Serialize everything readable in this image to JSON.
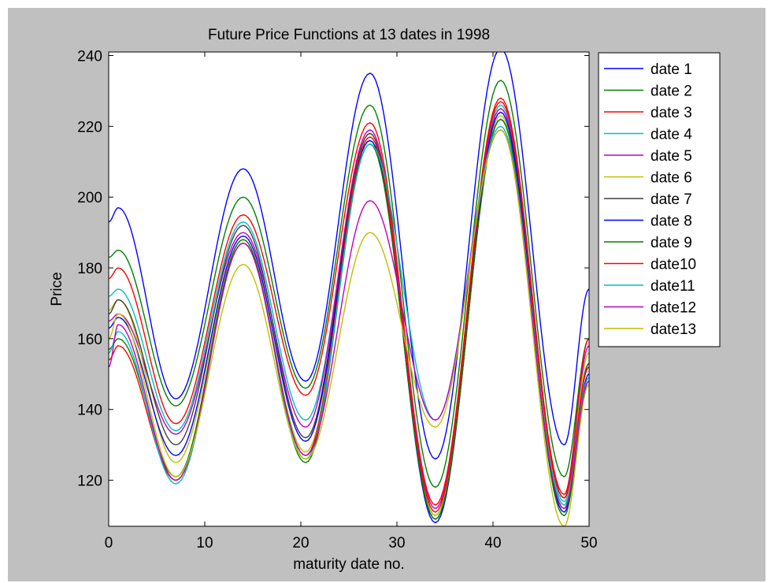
{
  "chart_data": {
    "type": "line",
    "title": "Future Price Functions at 13 dates in 1998",
    "xlabel": "maturity date no.",
    "ylabel": "Price",
    "xlim": [
      0,
      50
    ],
    "ylim": [
      107,
      241
    ],
    "xticks": [
      0,
      10,
      20,
      30,
      40,
      50
    ],
    "xtick_labels": [
      "0",
      "10",
      "20",
      "30",
      "40",
      "50"
    ],
    "yticks": [
      120,
      140,
      160,
      180,
      200,
      220,
      240
    ],
    "ytick_labels": [
      "120",
      "140",
      "160",
      "180",
      "200",
      "220",
      "240"
    ],
    "grid": false,
    "legend_position": "outside-right-top",
    "x": [
      0,
      1,
      7,
      14,
      20.5,
      27.2,
      34,
      40.8,
      47.4,
      50
    ],
    "series": [
      {
        "name": "date 1",
        "color": "#0000ff",
        "values": [
          193,
          197,
          143,
          208,
          148,
          235,
          126,
          242,
          130,
          174
        ]
      },
      {
        "name": "date 2",
        "color": "#008000",
        "values": [
          183,
          185,
          141,
          200,
          146,
          226,
          118,
          233,
          121,
          160
        ]
      },
      {
        "name": "date 3",
        "color": "#ff0000",
        "values": [
          177,
          180,
          136,
          195,
          144,
          221,
          113,
          228,
          116,
          160
        ]
      },
      {
        "name": "date 4",
        "color": "#00bfbf",
        "values": [
          172,
          174,
          134,
          193,
          137,
          216,
          110,
          226,
          114,
          153
        ]
      },
      {
        "name": "date 5",
        "color": "#bf00bf",
        "values": [
          165,
          167,
          133,
          190,
          135,
          219,
          112,
          225,
          115,
          158
        ]
      },
      {
        "name": "date 6",
        "color": "#bfbf00",
        "values": [
          168,
          171,
          125,
          188,
          128,
          218,
          110,
          223,
          113,
          156
        ]
      },
      {
        "name": "date 7",
        "color": "#404040",
        "values": [
          167,
          171,
          130,
          192,
          132,
          218,
          109,
          222,
          112,
          153
        ]
      },
      {
        "name": "date 8",
        "color": "#0000ff",
        "values": [
          163,
          166,
          127,
          189,
          131,
          216,
          108,
          224,
          111,
          150
        ]
      },
      {
        "name": "date 9",
        "color": "#008000",
        "values": [
          157,
          160,
          121,
          188,
          125,
          215,
          109,
          222,
          110,
          148
        ]
      },
      {
        "name": "date10",
        "color": "#ff0000",
        "values": [
          154,
          158,
          120,
          187,
          127,
          217,
          111,
          227,
          115,
          152
        ]
      },
      {
        "name": "date11",
        "color": "#00bfbf",
        "values": [
          156,
          162,
          119,
          187,
          126,
          215,
          137,
          220,
          113,
          149
        ]
      },
      {
        "name": "date12",
        "color": "#bf00bf",
        "values": [
          152,
          164,
          120,
          187,
          127,
          199,
          137,
          219,
          112,
          148
        ]
      },
      {
        "name": "date13",
        "color": "#bfbf00",
        "values": [
          160,
          167,
          121,
          181,
          126,
          190,
          135,
          219,
          107,
          147
        ]
      }
    ]
  }
}
